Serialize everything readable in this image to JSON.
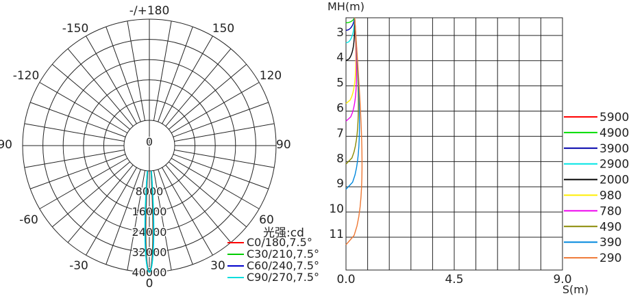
{
  "chart_data": [
    {
      "type": "polar",
      "angle_labels": [
        "-/+180",
        "-150",
        "150",
        "-120",
        "120",
        "-90",
        "90",
        "-60",
        "60",
        "-30",
        "30",
        "0"
      ],
      "angle_values": [
        180,
        -150,
        150,
        -120,
        120,
        -90,
        90,
        -60,
        60,
        -30,
        30,
        0
      ],
      "radial_ticks": [
        0,
        8000,
        16000,
        24000,
        32000,
        40000
      ],
      "radial_labels": [
        "0",
        "8000",
        "16000",
        "24000",
        "32000",
        "40000"
      ],
      "unit_label": "光强:cd",
      "series": [
        {
          "name": "C0/180,7.5°",
          "color": "#ff0000",
          "beam_half_angle_deg": 3.75,
          "peak_cd": 40000
        },
        {
          "name": "C30/210,7.5°",
          "color": "#00cc00",
          "beam_half_angle_deg": 3.75,
          "peak_cd": 40000
        },
        {
          "name": "C60/240,7.5°",
          "color": "#0000cc",
          "beam_half_angle_deg": 3.75,
          "peak_cd": 40000
        },
        {
          "name": "C90/270,7.5°",
          "color": "#00dddd",
          "beam_half_angle_deg": 3.75,
          "peak_cd": 40000
        }
      ]
    },
    {
      "type": "line",
      "ylabel": "MH(m)",
      "xlabel": "S(m)",
      "x_range": [
        0.0,
        9.0
      ],
      "y_range": [
        2.3,
        12.3
      ],
      "x_tick_labels": [
        "0.0",
        "4.5",
        "9.0"
      ],
      "y_ticks": [
        3,
        4,
        5,
        6,
        7,
        8,
        9,
        10,
        11
      ],
      "y_tick_labels": [
        "3",
        "4",
        "5",
        "6",
        "7",
        "8",
        "9",
        "10",
        "11"
      ],
      "series": [
        {
          "name": "5900",
          "color": "#ff0000",
          "start_MH": 2.3
        },
        {
          "name": "4900",
          "color": "#00dd00",
          "start_MH": 2.5
        },
        {
          "name": "3900",
          "color": "#0000aa",
          "start_MH": 2.8
        },
        {
          "name": "2900",
          "color": "#00e5e5",
          "start_MH": 3.3
        },
        {
          "name": "2000",
          "color": "#000000",
          "start_MH": 4.0
        },
        {
          "name": "980",
          "color": "#ffee00",
          "start_MH": 5.7
        },
        {
          "name": "780",
          "color": "#ee00ee",
          "start_MH": 6.4
        },
        {
          "name": "490",
          "color": "#888800",
          "start_MH": 8.1
        },
        {
          "name": "390",
          "color": "#0088dd",
          "start_MH": 9.1
        },
        {
          "name": "290",
          "color": "#ee7733",
          "start_MH": 11.3
        }
      ]
    }
  ]
}
